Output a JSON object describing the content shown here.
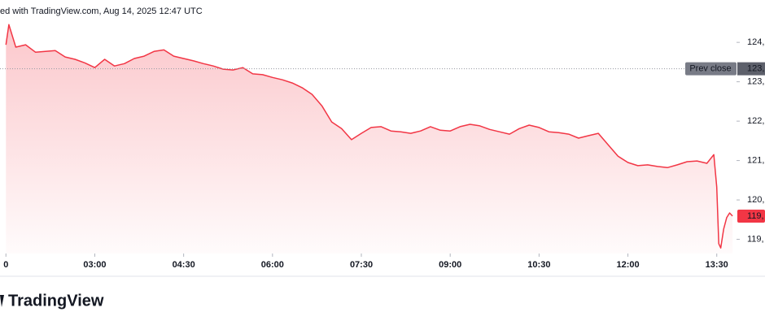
{
  "chart_data": {
    "type": "area",
    "title": "ed with TradingView.com, Aug 14, 2025 12:47 UTC",
    "brand": "TradingView",
    "x": [
      "01:30",
      "01:33",
      "01:40",
      "01:50",
      "02:00",
      "02:10",
      "02:20",
      "02:30",
      "02:40",
      "02:50",
      "03:00",
      "03:10",
      "03:20",
      "03:30",
      "03:40",
      "03:50",
      "04:00",
      "04:10",
      "04:20",
      "04:30",
      "04:40",
      "04:50",
      "05:00",
      "05:10",
      "05:20",
      "05:30",
      "05:40",
      "05:50",
      "06:00",
      "06:10",
      "06:20",
      "06:30",
      "06:40",
      "06:50",
      "07:00",
      "07:10",
      "07:20",
      "07:30",
      "07:40",
      "07:50",
      "08:00",
      "08:10",
      "08:20",
      "08:30",
      "08:40",
      "08:50",
      "09:00",
      "09:10",
      "09:20",
      "09:30",
      "09:40",
      "09:50",
      "10:00",
      "10:10",
      "10:20",
      "10:30",
      "10:40",
      "10:50",
      "11:00",
      "11:10",
      "11:20",
      "11:30",
      "11:40",
      "11:50",
      "12:00",
      "12:10",
      "12:20",
      "12:30",
      "12:40",
      "12:50",
      "13:00",
      "13:10",
      "13:20",
      "13:27",
      "13:30",
      "13:32",
      "13:34",
      "13:37",
      "13:40",
      "13:43",
      "13:46"
    ],
    "series": [
      {
        "color": "#f23645",
        "values": [
          123.94,
          124.45,
          123.88,
          123.94,
          123.75,
          123.77,
          123.79,
          123.63,
          123.57,
          123.48,
          123.36,
          123.57,
          123.4,
          123.46,
          123.59,
          123.65,
          123.77,
          123.81,
          123.65,
          123.59,
          123.53,
          123.46,
          123.4,
          123.32,
          123.3,
          123.36,
          123.2,
          123.18,
          123.11,
          123.05,
          122.97,
          122.85,
          122.68,
          122.39,
          121.98,
          121.81,
          121.53,
          121.69,
          121.84,
          121.86,
          121.75,
          121.73,
          121.69,
          121.75,
          121.86,
          121.77,
          121.75,
          121.86,
          121.92,
          121.88,
          121.79,
          121.73,
          121.67,
          121.81,
          121.9,
          121.84,
          121.73,
          121.71,
          121.67,
          121.57,
          121.63,
          121.69,
          121.4,
          121.11,
          120.95,
          120.87,
          120.89,
          120.85,
          120.82,
          120.89,
          120.97,
          120.99,
          120.93,
          121.15,
          120.33,
          118.89,
          118.78,
          119.26,
          119.55,
          119.67,
          119.59
        ]
      }
    ],
    "xlim": [
      "01:24",
      "13:50"
    ],
    "xticks": [
      {
        "value": "01:30",
        "label": "0"
      },
      "03:00",
      "04:30",
      "06:00",
      "07:30",
      "09:00",
      "10:30",
      "12:00",
      "13:30"
    ],
    "ylim": [
      118.64,
      124.56
    ],
    "yticks": [
      {
        "value": 124,
        "label": "124,"
      },
      {
        "value": 123,
        "label": "123,"
      },
      {
        "value": 122,
        "label": "122,"
      },
      {
        "value": 121,
        "label": "121,"
      },
      {
        "value": 120,
        "label": "120,"
      },
      {
        "value": 119,
        "label": "119,"
      }
    ],
    "prev_close": {
      "name": "Prev close",
      "value": 123.33,
      "label": "123,"
    },
    "last_price": {
      "value": 119.59,
      "label": "119,"
    }
  }
}
